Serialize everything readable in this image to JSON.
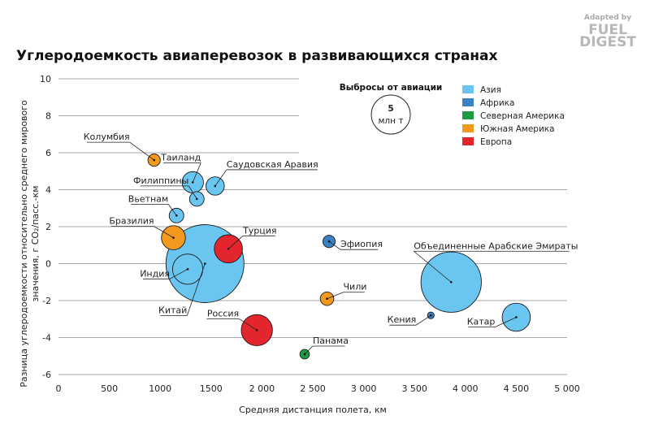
{
  "logo": {
    "small": "Adapted by",
    "line1": "FUEL",
    "line2": "DIGEST"
  },
  "chart_data": {
    "type": "scatter",
    "title": "Углеродоемкость авиаперевозок в развивающихся странах",
    "xlabel": "Средняя дистанция полета, км",
    "ylabel_lines": [
      "Разница углеродоемкости относительно среднего мирового",
      "значения, г CO₂/пасс.-км"
    ],
    "xlim": [
      0,
      5000
    ],
    "ylim": [
      -6,
      10
    ],
    "x_ticks": [
      0,
      500,
      1000,
      1500,
      2000,
      2500,
      3000,
      3500,
      4000,
      4500,
      5000
    ],
    "x_tick_labels": [
      "0",
      "500",
      "1000",
      "1500",
      "2 000",
      "2 500",
      "3 000",
      "3 500",
      "4 000",
      "4 500",
      "5 000"
    ],
    "y_ticks": [
      -6,
      -4,
      -2,
      0,
      2,
      4,
      6,
      8,
      10
    ],
    "y_tick_labels": [
      "-6",
      "-4",
      "-2",
      "0",
      "2",
      "4",
      "6",
      "8",
      "10"
    ],
    "grid": "horizontal",
    "size_legend": {
      "title": "Выбросы от авиации",
      "value": "5",
      "unit": "млн т",
      "reference_mt": 5
    },
    "regions": [
      {
        "name": "Азия",
        "color": "#6ac6f0"
      },
      {
        "name": "Африка",
        "color": "#3a82c6"
      },
      {
        "name": "Северная Америка",
        "color": "#1f9a45"
      },
      {
        "name": "Южная Америка",
        "color": "#f39a1e"
      },
      {
        "name": "Европа",
        "color": "#e3262d"
      }
    ],
    "points": [
      {
        "name": "Колумбия",
        "region": "Южная Америка",
        "x": 940,
        "y": 5.6,
        "emissions_mt": 0.5
      },
      {
        "name": "Таиланд",
        "region": "Азия",
        "x": 1320,
        "y": 4.4,
        "emissions_mt": 1.5
      },
      {
        "name": "Саудовская Аравия",
        "region": "Азия",
        "x": 1540,
        "y": 4.2,
        "emissions_mt": 1.1
      },
      {
        "name": "Филиппины",
        "region": "Азия",
        "x": 1360,
        "y": 3.5,
        "emissions_mt": 0.7
      },
      {
        "name": "Вьетнам",
        "region": "Азия",
        "x": 1160,
        "y": 2.6,
        "emissions_mt": 0.7
      },
      {
        "name": "Бразилия",
        "region": "Южная Америка",
        "x": 1130,
        "y": 1.4,
        "emissions_mt": 1.9
      },
      {
        "name": "Турция",
        "region": "Европа",
        "x": 1670,
        "y": 0.8,
        "emissions_mt": 2.6
      },
      {
        "name": "Эфиопия",
        "region": "Африка",
        "x": 2660,
        "y": 1.2,
        "emissions_mt": 0.5
      },
      {
        "name": "Индия",
        "region": "Азия",
        "x": 1270,
        "y": -0.3,
        "emissions_mt": 3.0
      },
      {
        "name": "Китай",
        "region": "Азия",
        "x": 1440,
        "y": 0.0,
        "emissions_mt": 20.0
      },
      {
        "name": "Объединенные Арабские Эмираты",
        "region": "Азия",
        "x": 3860,
        "y": -1.0,
        "emissions_mt": 12.0
      },
      {
        "name": "Чили",
        "region": "Южная Америка",
        "x": 2640,
        "y": -1.9,
        "emissions_mt": 0.6
      },
      {
        "name": "Кения",
        "region": "Африка",
        "x": 3660,
        "y": -2.8,
        "emissions_mt": 0.15
      },
      {
        "name": "Катар",
        "region": "Азия",
        "x": 4500,
        "y": -2.9,
        "emissions_mt": 2.6
      },
      {
        "name": "Россия",
        "region": "Европа",
        "x": 1950,
        "y": -3.6,
        "emissions_mt": 3.2
      },
      {
        "name": "Панама",
        "region": "Северная Америка",
        "x": 2420,
        "y": -4.9,
        "emissions_mt": 0.3
      }
    ]
  }
}
